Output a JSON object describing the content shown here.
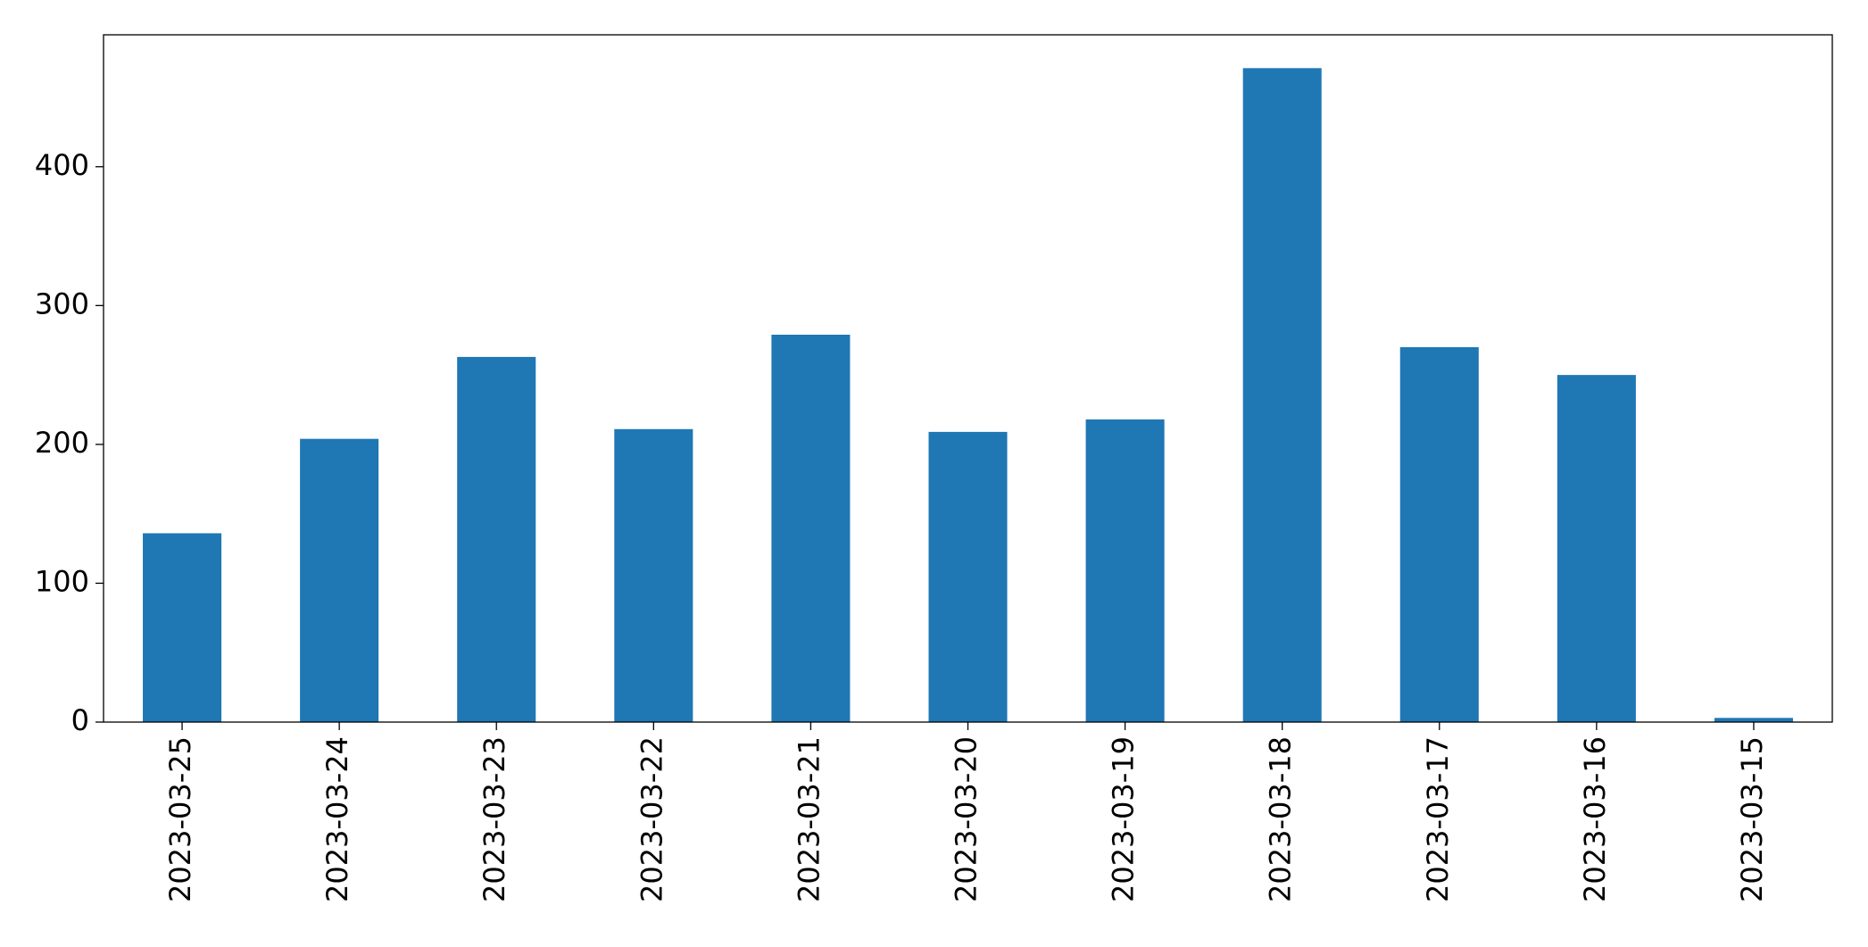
{
  "chart_data": {
    "type": "bar",
    "categories": [
      "2023-03-25",
      "2023-03-24",
      "2023-03-23",
      "2023-03-22",
      "2023-03-21",
      "2023-03-20",
      "2023-03-19",
      "2023-03-18",
      "2023-03-17",
      "2023-03-16",
      "2023-03-15"
    ],
    "values": [
      136,
      204,
      263,
      211,
      279,
      209,
      218,
      471,
      270,
      250,
      3
    ],
    "color": "#1f77b4",
    "ylim": [
      0,
      495
    ],
    "yticks": [
      0,
      100,
      200,
      300,
      400
    ],
    "grid": false
  }
}
